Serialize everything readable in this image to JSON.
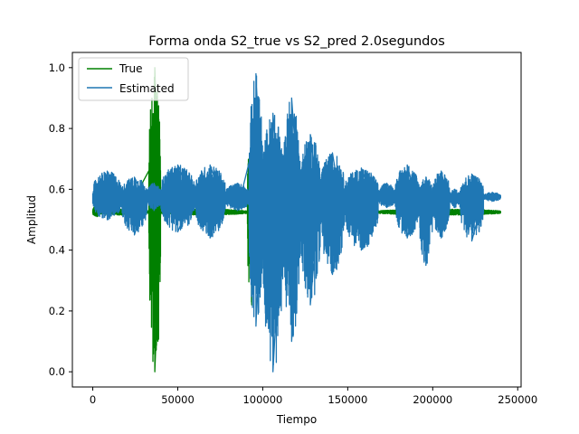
{
  "chart_data": {
    "type": "line",
    "title": "Forma onda S2_true vs S2_pred 2.0segundos",
    "xlabel": "Tiempo",
    "ylabel": "Amplitud",
    "xlim": [
      -12000,
      252000
    ],
    "ylim": [
      -0.05,
      1.05
    ],
    "xticks": [
      0,
      50000,
      100000,
      150000,
      200000,
      250000
    ],
    "xtick_labels": [
      "0",
      "50000",
      "100000",
      "150000",
      "200000",
      "250000"
    ],
    "yticks": [
      0.0,
      0.2,
      0.4,
      0.6,
      0.8,
      1.0
    ],
    "ytick_labels": [
      "0.0",
      "0.2",
      "0.4",
      "0.6",
      "0.8",
      "1.0"
    ],
    "grid": false,
    "legend_position": "upper-left",
    "series": [
      {
        "name": "True",
        "color": "#008000",
        "baseline": 0.525,
        "segments": [
          {
            "x_start": 0,
            "x_end": 5000,
            "low": 0.51,
            "high": 0.55
          },
          {
            "x_start": 5000,
            "x_end": 33000,
            "low": 0.515,
            "high": 0.535
          },
          {
            "x_start": 33000,
            "x_end": 40000,
            "low": 0.0,
            "high": 1.0
          },
          {
            "x_start": 40000,
            "x_end": 91000,
            "low": 0.515,
            "high": 0.535
          },
          {
            "x_start": 91000,
            "x_end": 96000,
            "low": 0.22,
            "high": 0.78
          },
          {
            "x_start": 96000,
            "x_end": 168000,
            "low": 0.515,
            "high": 0.535
          },
          {
            "x_start": 168000,
            "x_end": 240000,
            "low": 0.515,
            "high": 0.535
          }
        ]
      },
      {
        "name": "Estimated",
        "color": "#1f77b4",
        "baseline": 0.575,
        "segments": [
          {
            "x_start": 0,
            "x_end": 17000,
            "low": 0.5,
            "high": 0.66
          },
          {
            "x_start": 17000,
            "x_end": 32000,
            "low": 0.45,
            "high": 0.64
          },
          {
            "x_start": 32000,
            "x_end": 40000,
            "low": 0.53,
            "high": 0.62
          },
          {
            "x_start": 40000,
            "x_end": 60000,
            "low": 0.46,
            "high": 0.68
          },
          {
            "x_start": 60000,
            "x_end": 78000,
            "low": 0.44,
            "high": 0.68
          },
          {
            "x_start": 78000,
            "x_end": 92000,
            "low": 0.53,
            "high": 0.62
          },
          {
            "x_start": 92000,
            "x_end": 100000,
            "low": 0.15,
            "high": 0.98
          },
          {
            "x_start": 100000,
            "x_end": 112000,
            "low": 0.0,
            "high": 0.85
          },
          {
            "x_start": 112000,
            "x_end": 122000,
            "low": 0.1,
            "high": 0.9
          },
          {
            "x_start": 122000,
            "x_end": 134000,
            "low": 0.22,
            "high": 0.78
          },
          {
            "x_start": 134000,
            "x_end": 148000,
            "low": 0.32,
            "high": 0.72
          },
          {
            "x_start": 148000,
            "x_end": 168000,
            "low": 0.4,
            "high": 0.67
          },
          {
            "x_start": 168000,
            "x_end": 178000,
            "low": 0.54,
            "high": 0.62
          },
          {
            "x_start": 178000,
            "x_end": 192000,
            "low": 0.44,
            "high": 0.68
          },
          {
            "x_start": 192000,
            "x_end": 200000,
            "low": 0.35,
            "high": 0.64
          },
          {
            "x_start": 200000,
            "x_end": 210000,
            "low": 0.44,
            "high": 0.66
          },
          {
            "x_start": 210000,
            "x_end": 216000,
            "low": 0.54,
            "high": 0.6
          },
          {
            "x_start": 216000,
            "x_end": 230000,
            "low": 0.43,
            "high": 0.65
          },
          {
            "x_start": 230000,
            "x_end": 240000,
            "low": 0.56,
            "high": 0.59
          }
        ]
      }
    ]
  }
}
